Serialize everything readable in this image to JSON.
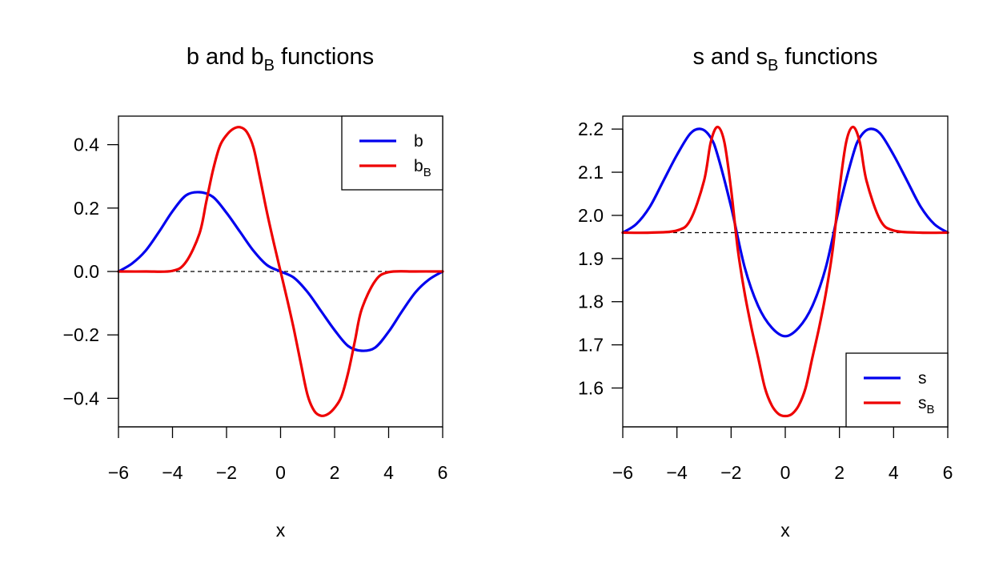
{
  "chart_data": [
    {
      "type": "line",
      "title": "b and b_B functions",
      "title_main": "b and b",
      "title_sub": "B",
      "title_tail": " functions",
      "xlabel": "x",
      "ylabel": "",
      "xlim": [
        -6,
        6
      ],
      "ylim": [
        -0.49,
        0.49
      ],
      "xticks": [
        -6,
        -4,
        -2,
        0,
        2,
        4,
        6
      ],
      "xtick_labels": [
        "−6",
        "−4",
        "−2",
        "0",
        "2",
        "4",
        "6"
      ],
      "yticks": [
        -0.4,
        -0.2,
        0.0,
        0.2,
        0.4
      ],
      "ytick_labels": [
        "−0.4",
        "−0.2",
        "0.0",
        "0.2",
        "0.4"
      ],
      "reference_line": {
        "y": 0.0,
        "style": "dashed",
        "color": "#000000"
      },
      "legend_position": "top-right",
      "legend": [
        {
          "main": "b",
          "sub": ""
        },
        {
          "main": "b",
          "sub": "B"
        }
      ],
      "series": [
        {
          "name": "b",
          "color": "#0000ee",
          "x": [
            -6,
            -5.5,
            -5,
            -4.5,
            -4,
            -3.5,
            -3,
            -2.5,
            -2,
            -1.5,
            -1,
            -0.5,
            0,
            0.5,
            1,
            1.5,
            2,
            2.5,
            3,
            3.5,
            4,
            4.5,
            5,
            5.5,
            6
          ],
          "y": [
            0.0,
            0.025,
            0.065,
            0.125,
            0.19,
            0.24,
            0.25,
            0.235,
            0.185,
            0.125,
            0.065,
            0.02,
            0.0,
            -0.02,
            -0.065,
            -0.125,
            -0.185,
            -0.235,
            -0.25,
            -0.24,
            -0.19,
            -0.125,
            -0.065,
            -0.025,
            0.0
          ]
        },
        {
          "name": "b_B",
          "color": "#ee0000",
          "x": [
            -6,
            -5,
            -4,
            -3.5,
            -3,
            -2.75,
            -2.5,
            -2.25,
            -2,
            -1.75,
            -1.5,
            -1.25,
            -1,
            -0.75,
            -0.5,
            -0.25,
            0,
            0.25,
            0.5,
            0.75,
            1,
            1.25,
            1.5,
            1.75,
            2,
            2.25,
            2.5,
            2.75,
            3,
            3.5,
            4,
            5,
            6
          ],
          "y": [
            0.0,
            0.0,
            0.002,
            0.03,
            0.12,
            0.22,
            0.32,
            0.395,
            0.43,
            0.45,
            0.455,
            0.44,
            0.39,
            0.29,
            0.185,
            0.09,
            0.0,
            -0.09,
            -0.185,
            -0.29,
            -0.39,
            -0.44,
            -0.455,
            -0.45,
            -0.43,
            -0.395,
            -0.32,
            -0.22,
            -0.12,
            -0.03,
            -0.002,
            0.0,
            0.0
          ]
        }
      ]
    },
    {
      "type": "line",
      "title": "s and s_B functions",
      "title_main": "s and s",
      "title_sub": "B",
      "title_tail": " functions",
      "xlabel": "x",
      "ylabel": "",
      "xlim": [
        -6,
        6
      ],
      "ylim": [
        1.51,
        2.23
      ],
      "xticks": [
        -6,
        -4,
        -2,
        0,
        2,
        4,
        6
      ],
      "xtick_labels": [
        "−6",
        "−4",
        "−2",
        "0",
        "2",
        "4",
        "6"
      ],
      "yticks": [
        1.6,
        1.7,
        1.8,
        1.9,
        2.0,
        2.1,
        2.2
      ],
      "ytick_labels": [
        "1.6",
        "1.7",
        "1.8",
        "1.9",
        "2.0",
        "2.1",
        "2.2"
      ],
      "reference_line": {
        "y": 1.96,
        "style": "dashed",
        "color": "#000000"
      },
      "legend_position": "bottom-right",
      "legend": [
        {
          "main": "s",
          "sub": ""
        },
        {
          "main": "s",
          "sub": "B"
        }
      ],
      "series": [
        {
          "name": "s",
          "color": "#0000ee",
          "x": [
            -6,
            -5.5,
            -5,
            -4.5,
            -4,
            -3.5,
            -3.1,
            -2.75,
            -2.5,
            -2,
            -1.5,
            -1,
            -0.5,
            0,
            0.5,
            1,
            1.5,
            2,
            2.5,
            2.75,
            3.1,
            3.5,
            4,
            4.5,
            5,
            5.5,
            6
          ],
          "y": [
            1.96,
            1.98,
            2.02,
            2.08,
            2.14,
            2.19,
            2.2,
            2.18,
            2.14,
            2.02,
            1.88,
            1.79,
            1.74,
            1.72,
            1.74,
            1.79,
            1.88,
            2.02,
            2.14,
            2.18,
            2.2,
            2.19,
            2.14,
            2.08,
            2.02,
            1.98,
            1.96
          ]
        },
        {
          "name": "s_B",
          "color": "#ee0000",
          "x": [
            -6,
            -5,
            -4,
            -3.5,
            -3,
            -2.75,
            -2.5,
            -2.25,
            -2,
            -1.75,
            -1.5,
            -1.25,
            -1,
            -0.75,
            -0.5,
            -0.25,
            0,
            0.25,
            0.5,
            0.75,
            1,
            1.25,
            1.5,
            1.75,
            2,
            2.25,
            2.5,
            2.75,
            3,
            3.5,
            4,
            5,
            6
          ],
          "y": [
            1.96,
            1.96,
            1.965,
            1.99,
            2.08,
            2.17,
            2.205,
            2.17,
            2.06,
            1.92,
            1.82,
            1.74,
            1.67,
            1.6,
            1.56,
            1.54,
            1.535,
            1.54,
            1.56,
            1.6,
            1.67,
            1.74,
            1.82,
            1.92,
            2.06,
            2.17,
            2.205,
            2.17,
            2.08,
            1.99,
            1.965,
            1.96,
            1.96
          ]
        }
      ]
    }
  ]
}
